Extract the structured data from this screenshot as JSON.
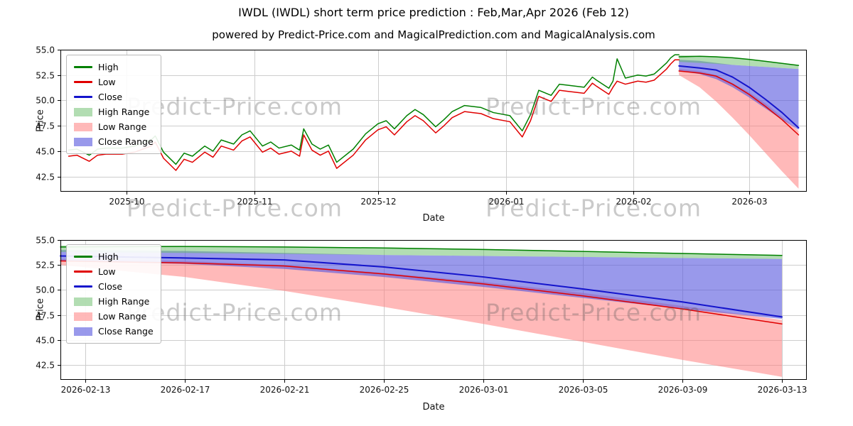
{
  "title": "IWDL (IWDL) short term price prediction : Feb,Mar,Apr 2026 (Feb 12)",
  "subtitle": "powered by Predict-Price.com and MagicalPrediction.com and MagicalAnalysis.com",
  "watermark": "Predict-Price.com",
  "axes": {
    "price": "Price",
    "date": "Date"
  },
  "legend": [
    {
      "label": "High",
      "marker": "line",
      "color": "#008000"
    },
    {
      "label": "Low",
      "marker": "line",
      "color": "#e00000"
    },
    {
      "label": "Close",
      "marker": "line",
      "color": "#1414cc"
    },
    {
      "label": "High Range",
      "marker": "patch",
      "color": "rgba(102,187,102,0.5)"
    },
    {
      "label": "Low Range",
      "marker": "patch",
      "color": "rgba(255,128,128,0.55)"
    },
    {
      "label": "Close Range",
      "marker": "patch",
      "color": "rgba(85,85,221,0.6)"
    }
  ],
  "chart_data": {
    "type": "line",
    "title": "IWDL (IWDL) short term price prediction : Feb,Mar,Apr 2026 (Feb 12)",
    "xlabel": "Date",
    "ylabel": "Price",
    "history": {
      "dates": [
        "2025-09-17",
        "2025-09-19",
        "2025-09-22",
        "2025-09-24",
        "2025-09-26",
        "2025-09-30",
        "2025-10-03",
        "2025-10-07",
        "2025-10-08",
        "2025-10-10",
        "2025-10-13",
        "2025-10-15",
        "2025-10-17",
        "2025-10-20",
        "2025-10-22",
        "2025-10-24",
        "2025-10-27",
        "2025-10-29",
        "2025-10-31",
        "2025-11-03",
        "2025-11-05",
        "2025-11-07",
        "2025-11-10",
        "2025-11-12",
        "2025-11-13",
        "2025-11-15",
        "2025-11-17",
        "2025-11-19",
        "2025-11-21",
        "2025-11-25",
        "2025-11-28",
        "2025-12-01",
        "2025-12-03",
        "2025-12-05",
        "2025-12-08",
        "2025-12-10",
        "2025-12-12",
        "2025-12-15",
        "2025-12-17",
        "2025-12-19",
        "2025-12-22",
        "2025-12-24",
        "2025-12-26",
        "2025-12-29",
        "2026-01-02",
        "2026-01-05",
        "2026-01-07",
        "2026-01-09",
        "2026-01-12",
        "2026-01-14",
        "2026-01-16",
        "2026-01-20",
        "2026-01-22",
        "2026-01-23",
        "2026-01-26",
        "2026-01-27",
        "2026-01-28",
        "2026-01-30",
        "2026-02-02",
        "2026-02-04",
        "2026-02-06",
        "2026-02-09",
        "2026-02-10",
        "2026-02-11",
        "2026-02-12"
      ],
      "high": [
        45.1,
        45.2,
        44.6,
        45.2,
        45.3,
        45.3,
        45.5,
        46.1,
        46.5,
        44.9,
        43.7,
        44.8,
        44.5,
        45.5,
        45.0,
        46.1,
        45.7,
        46.6,
        47.0,
        45.5,
        45.9,
        45.3,
        45.6,
        45.1,
        47.2,
        45.7,
        45.2,
        45.6,
        43.9,
        45.2,
        46.7,
        47.7,
        48.0,
        47.2,
        48.5,
        49.1,
        48.6,
        47.4,
        48.1,
        48.9,
        49.5,
        49.4,
        49.3,
        48.8,
        48.5,
        47.0,
        48.6,
        51.0,
        50.5,
        51.6,
        51.5,
        51.3,
        52.3,
        52.0,
        51.2,
        51.9,
        54.1,
        52.2,
        52.5,
        52.4,
        52.6,
        53.7,
        54.2,
        54.5,
        54.5
      ],
      "low": [
        44.5,
        44.6,
        44.0,
        44.6,
        44.7,
        44.7,
        44.9,
        45.5,
        45.9,
        44.3,
        43.1,
        44.2,
        43.9,
        44.9,
        44.4,
        45.5,
        45.1,
        46.0,
        46.4,
        44.9,
        45.3,
        44.7,
        45.0,
        44.5,
        46.6,
        45.1,
        44.6,
        45.0,
        43.3,
        44.6,
        46.1,
        47.1,
        47.4,
        46.6,
        47.9,
        48.5,
        48.0,
        46.8,
        47.5,
        48.3,
        48.9,
        48.8,
        48.7,
        48.2,
        47.9,
        46.4,
        48.0,
        50.4,
        49.9,
        51.0,
        50.9,
        50.7,
        51.7,
        51.4,
        50.6,
        51.3,
        51.9,
        51.6,
        51.9,
        51.8,
        52.0,
        53.1,
        53.6,
        54.0,
        54.0
      ]
    },
    "forecast": {
      "dates": [
        "2026-02-12",
        "2026-02-17",
        "2026-02-21",
        "2026-02-25",
        "2026-03-01",
        "2026-03-05",
        "2026-03-09",
        "2026-03-13"
      ],
      "high": [
        54.3,
        54.35,
        54.3,
        54.2,
        54.05,
        53.85,
        53.65,
        53.45
      ],
      "low": [
        52.9,
        52.7,
        52.4,
        51.6,
        50.6,
        49.4,
        48.1,
        46.6
      ],
      "close": [
        53.4,
        53.2,
        53.0,
        52.3,
        51.3,
        50.1,
        48.8,
        47.3
      ],
      "high_range_upper": [
        54.45,
        54.4,
        54.35,
        54.25,
        54.1,
        53.9,
        53.7,
        53.5
      ],
      "high_range_lower": [
        53.8,
        53.7,
        53.6,
        53.5,
        53.4,
        53.3,
        53.2,
        53.1
      ],
      "close_range_upper": [
        54.0,
        53.9,
        53.7,
        53.5,
        53.4,
        53.3,
        53.2,
        53.1
      ],
      "close_range_lower": [
        52.9,
        52.6,
        52.1,
        51.3,
        50.3,
        49.2,
        48.1,
        47.1
      ],
      "low_range_upper": [
        53.1,
        52.9,
        52.5,
        51.7,
        50.8,
        49.7,
        48.4,
        47.0
      ],
      "low_range_lower": [
        52.5,
        51.3,
        49.9,
        48.3,
        46.6,
        44.8,
        43.0,
        41.3
      ]
    },
    "charts": [
      {
        "name": "history-with-forecast",
        "grid": true,
        "legend_position": "upper left",
        "xlim": [
          "2025-09-15",
          "2026-03-15"
        ],
        "ylim": [
          41.0,
          55.0
        ],
        "yticks": [
          42.5,
          45.0,
          47.5,
          50.0,
          52.5,
          55.0
        ],
        "xticks": [
          {
            "date": "2025-10-01",
            "label": "2025-10"
          },
          {
            "date": "2025-11-01",
            "label": "2025-11"
          },
          {
            "date": "2025-12-01",
            "label": "2025-12"
          },
          {
            "date": "2026-01-01",
            "label": "2026-01"
          },
          {
            "date": "2026-02-01",
            "label": "2026-02"
          },
          {
            "date": "2026-03-01",
            "label": "2026-03"
          }
        ],
        "bands": [
          {
            "name": "Low Range",
            "dates": "forecast.dates",
            "upper": "forecast.low_range_upper",
            "lower": "forecast.low_range_lower",
            "color": "#ff8080",
            "opacity": 0.55
          },
          {
            "name": "Close Range",
            "dates": "forecast.dates",
            "upper": "forecast.close_range_upper",
            "lower": "forecast.close_range_lower",
            "color": "#5555dd",
            "opacity": 0.6
          },
          {
            "name": "High Range",
            "dates": "forecast.dates",
            "upper": "forecast.high_range_upper",
            "lower": "forecast.high_range_lower",
            "color": "#66bb66",
            "opacity": 0.5
          }
        ],
        "lines": [
          {
            "name": "High",
            "dates": "history.dates",
            "values": "history.high",
            "color": "#008000",
            "width": 1.5
          },
          {
            "name": "Low",
            "dates": "history.dates",
            "values": "history.low",
            "color": "#e00000",
            "width": 1.5
          },
          {
            "name": "High forecast",
            "dates": "forecast.dates",
            "values": "forecast.high",
            "color": "#008000",
            "width": 1.5
          },
          {
            "name": "Low forecast",
            "dates": "forecast.dates",
            "values": "forecast.low",
            "color": "#e00000",
            "width": 1.5
          },
          {
            "name": "Close forecast",
            "dates": "forecast.dates",
            "values": "forecast.close",
            "color": "#1414cc",
            "width": 2
          }
        ]
      },
      {
        "name": "forecast-detail",
        "grid": true,
        "legend_position": "upper left",
        "xlim": [
          "2026-02-12",
          "2026-03-14"
        ],
        "ylim": [
          41.0,
          55.0
        ],
        "yticks": [
          42.5,
          45.0,
          47.5,
          50.0,
          52.5,
          55.0
        ],
        "xticks": [
          {
            "date": "2026-02-13",
            "label": "2026-02-13"
          },
          {
            "date": "2026-02-17",
            "label": "2026-02-17"
          },
          {
            "date": "2026-02-21",
            "label": "2026-02-21"
          },
          {
            "date": "2026-02-25",
            "label": "2026-02-25"
          },
          {
            "date": "2026-03-01",
            "label": "2026-03-01"
          },
          {
            "date": "2026-03-05",
            "label": "2026-03-05"
          },
          {
            "date": "2026-03-09",
            "label": "2026-03-09"
          },
          {
            "date": "2026-03-13",
            "label": "2026-03-13"
          }
        ],
        "bands": [
          {
            "name": "Low Range",
            "dates": "forecast.dates",
            "upper": "forecast.low_range_upper",
            "lower": "forecast.low_range_lower",
            "color": "#ff8080",
            "opacity": 0.55
          },
          {
            "name": "Close Range",
            "dates": "forecast.dates",
            "upper": "forecast.close_range_upper",
            "lower": "forecast.close_range_lower",
            "color": "#5555dd",
            "opacity": 0.6
          },
          {
            "name": "High Range",
            "dates": "forecast.dates",
            "upper": "forecast.high_range_upper",
            "lower": "forecast.high_range_lower",
            "color": "#66bb66",
            "opacity": 0.5
          }
        ],
        "lines": [
          {
            "name": "High forecast",
            "dates": "forecast.dates",
            "values": "forecast.high",
            "color": "#008000",
            "width": 1.5
          },
          {
            "name": "Low forecast",
            "dates": "forecast.dates",
            "values": "forecast.low",
            "color": "#e00000",
            "width": 1.5
          },
          {
            "name": "Close forecast",
            "dates": "forecast.dates",
            "values": "forecast.close",
            "color": "#1414cc",
            "width": 2
          }
        ]
      }
    ]
  }
}
